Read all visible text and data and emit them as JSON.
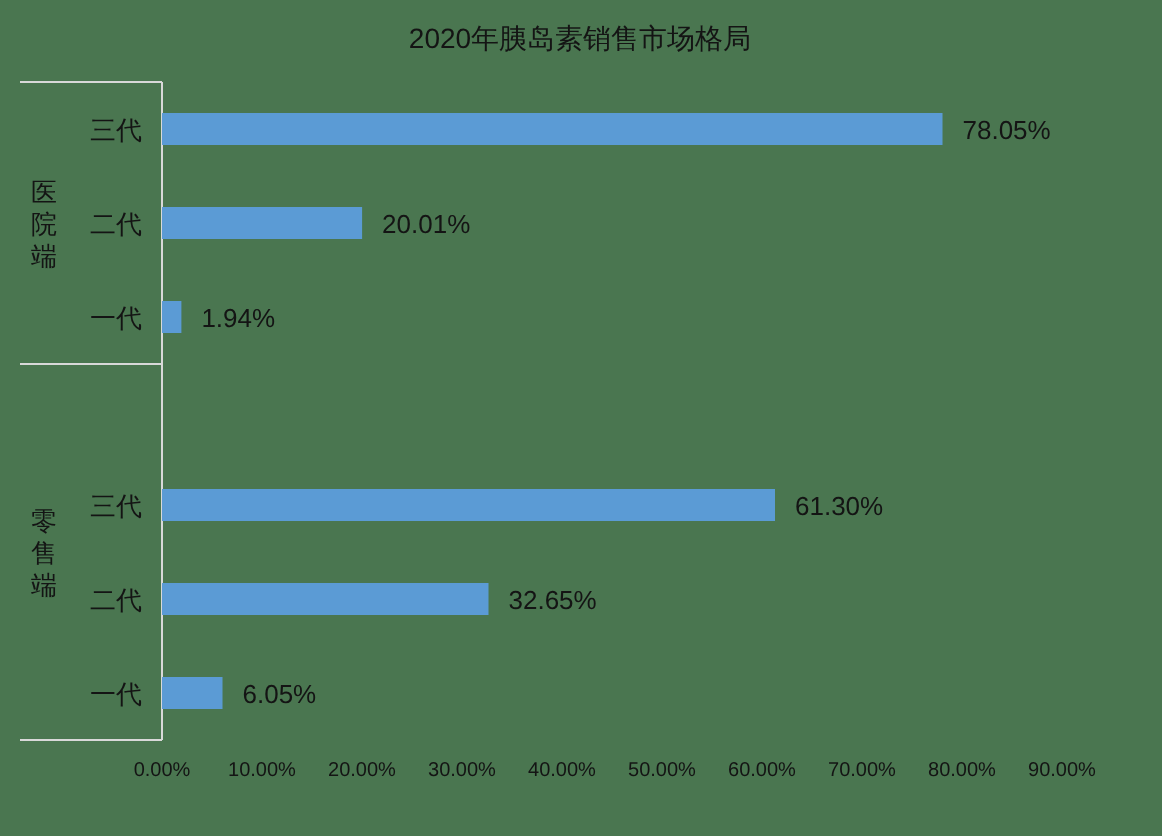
{
  "chart_data": {
    "type": "bar",
    "orientation": "horizontal",
    "title": "2020年胰岛素销售市场格局",
    "categories": [
      "三代",
      "二代",
      "一代",
      null,
      "三代",
      "二代",
      "一代"
    ],
    "values": [
      78.05,
      20.01,
      1.94,
      null,
      61.3,
      32.65,
      6.05
    ],
    "value_labels": [
      "78.05%",
      "20.01%",
      "1.94%",
      null,
      "61.30%",
      "32.65%",
      "6.05%"
    ],
    "color": "#5b9bd5",
    "xlim": [
      0,
      90
    ],
    "xticks": [
      {
        "value": 0,
        "label": "0.00%"
      },
      {
        "value": 10,
        "label": "10.00%"
      },
      {
        "value": 20,
        "label": "20.00%"
      },
      {
        "value": 30,
        "label": "30.00%"
      },
      {
        "value": 40,
        "label": "40.00%"
      },
      {
        "value": 50,
        "label": "50.00%"
      },
      {
        "value": 60,
        "label": "60.00%"
      },
      {
        "value": 70,
        "label": "70.00%"
      },
      {
        "value": 80,
        "label": "80.00%"
      },
      {
        "value": 90,
        "label": "90.00%"
      }
    ],
    "annotations": [
      "医院端",
      "零售端"
    ]
  }
}
